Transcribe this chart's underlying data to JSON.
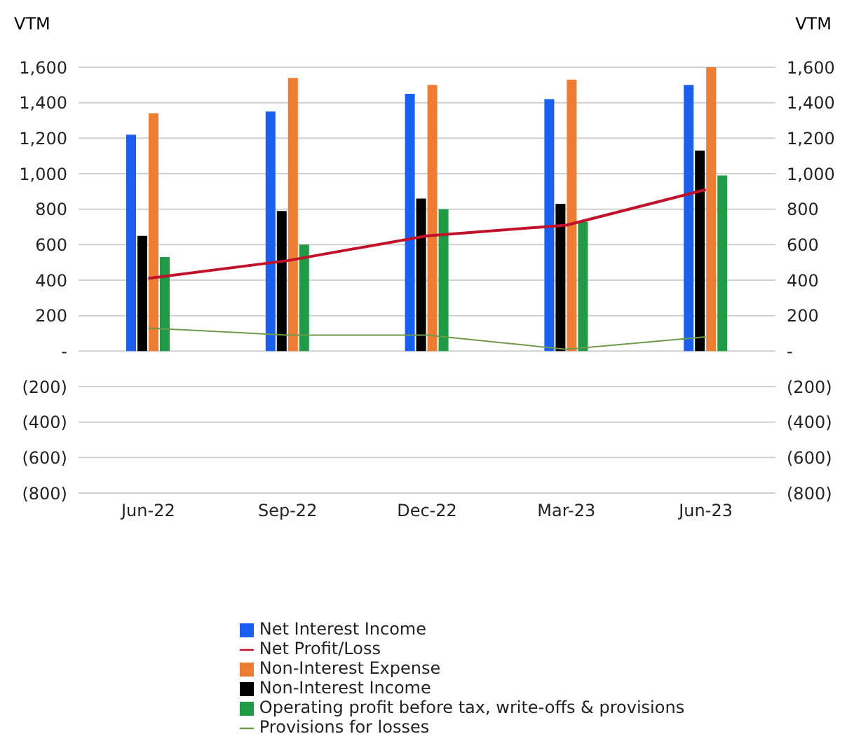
{
  "chart_data": {
    "type": "bar",
    "ylabel": "VTM",
    "y2label": "VTM",
    "categories": [
      "Jun-22",
      "Sep-22",
      "Dec-22",
      "Mar-23",
      "Jun-23"
    ],
    "series": [
      {
        "name": "Net Interest Income",
        "color": "#1a5ff0",
        "values": [
          1220,
          1350,
          1450,
          1420,
          1500
        ]
      },
      {
        "name": "Non-Interest Income",
        "color": "#000000",
        "values": [
          650,
          790,
          860,
          830,
          1130
        ]
      },
      {
        "name": "Non-Interest Expense",
        "color": "#ee7d31",
        "values": [
          1340,
          1540,
          1500,
          1530,
          1600
        ]
      },
      {
        "name": "Operating profit before tax, write-offs & provisions",
        "color": "#1f9a45",
        "values": [
          530,
          600,
          800,
          730,
          990
        ]
      },
      {
        "name": "Net Profit/Loss",
        "type": "line",
        "color": "#c0122a",
        "values": [
          410,
          510,
          650,
          710,
          910
        ]
      },
      {
        "name": "Provisions for losses",
        "type": "line",
        "color": "#6f9a4c",
        "values": [
          130,
          90,
          90,
          10,
          80
        ]
      }
    ],
    "ylim": [
      -800,
      1600
    ],
    "yticks": [
      {
        "value": -800,
        "label": "(800)"
      },
      {
        "value": -600,
        "label": "(600)"
      },
      {
        "value": -400,
        "label": "(400)"
      },
      {
        "value": -200,
        "label": "(200)"
      },
      {
        "value": 0,
        "label": "-"
      },
      200,
      400,
      600,
      800,
      {
        "value": 1000,
        "label": "1,000"
      },
      {
        "value": 1200,
        "label": "1,200"
      },
      {
        "value": 1400,
        "label": "1,400"
      },
      {
        "value": 1600,
        "label": "1,600"
      }
    ],
    "y2lim": [
      -800,
      1600
    ],
    "y2ticks": [
      {
        "value": -800,
        "label": "(800)"
      },
      {
        "value": -600,
        "label": "(600)"
      },
      {
        "value": -400,
        "label": "(400)"
      },
      {
        "value": -200,
        "label": "(200)"
      },
      {
        "value": 0,
        "label": "-"
      },
      200,
      400,
      600,
      800,
      {
        "value": 1000,
        "label": "1,000"
      },
      {
        "value": 1200,
        "label": "1,200"
      },
      {
        "value": 1400,
        "label": "1,400"
      },
      {
        "value": 1600,
        "label": "1,600"
      }
    ],
    "grid": "y",
    "legend": "bottom",
    "marker": "none"
  }
}
